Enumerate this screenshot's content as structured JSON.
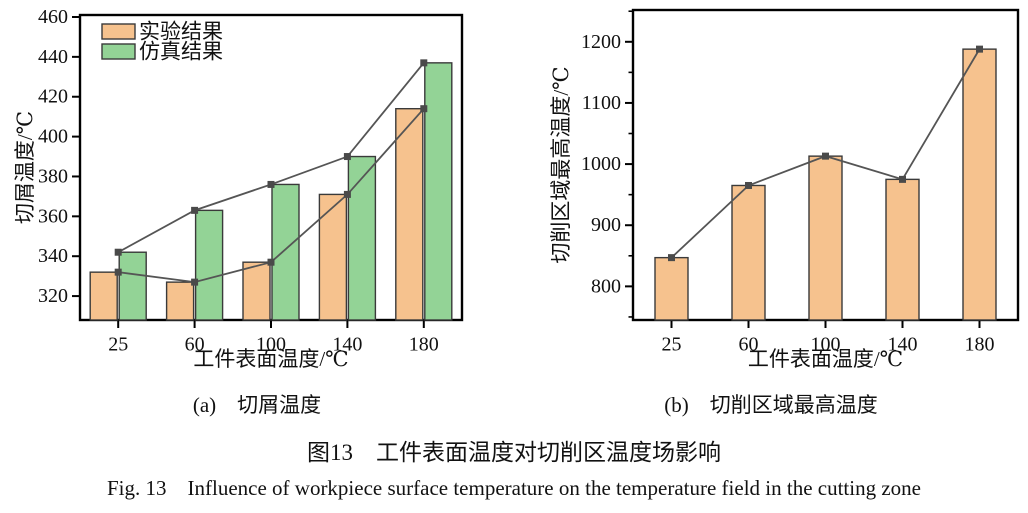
{
  "figure": {
    "caption_a": "(a)　切屑温度",
    "caption_b": "(b)　切削区域最高温度",
    "title_zh": "图13　工件表面温度对切削区温度场影响",
    "title_en": "Fig. 13　Influence of workpiece surface temperature on the temperature field in the cutting zone"
  },
  "colors": {
    "background": "#ffffff",
    "experiment_bar": "#f6c28e",
    "simulation_bar": "#93d396",
    "bar_border": "#3a3a3a",
    "line": "#555555",
    "marker": "#4a4a4a",
    "axis": "#000000",
    "text": "#111111"
  },
  "chart_data": [
    {
      "id": "chip-temperature",
      "type": "bar",
      "line_overlay": true,
      "title": "(a) 切屑温度",
      "xlabel": "工件表面温度/℃",
      "ylabel": "切屑温度/℃",
      "categories": [
        "25",
        "60",
        "100",
        "140",
        "180"
      ],
      "series": [
        {
          "name": "实验结果",
          "values": [
            332,
            327,
            337,
            371,
            414
          ],
          "color": "#f6c28e"
        },
        {
          "name": "仿真结果",
          "values": [
            342,
            363,
            376,
            390,
            437
          ],
          "color": "#93d396"
        }
      ],
      "ylim": [
        308,
        461
      ],
      "yticks": [
        320,
        340,
        360,
        380,
        400,
        420,
        440,
        460
      ],
      "grid": false,
      "legend": {
        "position": "top-left",
        "entries": [
          "实验结果",
          "仿真结果"
        ]
      }
    },
    {
      "id": "max-cutting-zone-temperature",
      "type": "bar",
      "line_overlay": true,
      "title": "(b) 切削区域最高温度",
      "xlabel": "工件表面温度/℃",
      "ylabel": "切削区域最高温度/℃",
      "categories": [
        "25",
        "60",
        "100",
        "140",
        "180"
      ],
      "series": [
        {
          "name": "实验结果",
          "values": [
            847,
            965,
            1013,
            975,
            1188
          ],
          "color": "#f6c28e"
        }
      ],
      "ylim": [
        745,
        1252
      ],
      "yticks": [
        800,
        900,
        1000,
        1100,
        1200
      ],
      "minor_tick_step": 50,
      "grid": false,
      "legend": null
    }
  ]
}
